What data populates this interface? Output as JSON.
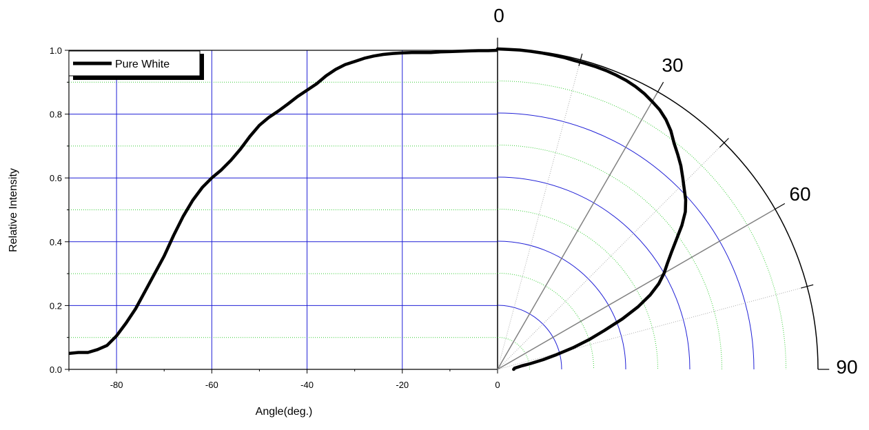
{
  "chart_data": [
    {
      "type": "line",
      "xlabel": "Angle(deg.)",
      "ylabel": "Relative Intensity",
      "xlim": [
        -90,
        0
      ],
      "ylim": [
        0,
        1.0
      ],
      "xticks": [
        -80,
        -60,
        -40,
        -20,
        0
      ],
      "yticks": [
        0.0,
        0.2,
        0.4,
        0.6,
        0.8,
        1.0
      ],
      "x_tick_labels": [
        "-80",
        "-60",
        "-40",
        "-20",
        "0"
      ],
      "y_tick_labels": [
        "0.0",
        "0.2",
        "0.4",
        "0.6",
        "0.8",
        "1.0"
      ],
      "grid": true,
      "legend_position": "top-left",
      "series": [
        {
          "name": "Pure White",
          "color": "#000000",
          "x": [
            -90,
            -88,
            -86,
            -84,
            -82,
            -80,
            -78,
            -76,
            -74,
            -72,
            -70,
            -68,
            -66,
            -64,
            -62,
            -60,
            -58,
            -56,
            -54,
            -52,
            -50,
            -48,
            -46,
            -44,
            -42,
            -40,
            -38,
            -36,
            -34,
            -32,
            -30,
            -28,
            -26,
            -24,
            -22,
            -20,
            -18,
            -16,
            -14,
            -12,
            -10,
            -8,
            -6,
            -4,
            -2,
            0
          ],
          "y": [
            0.05,
            0.053,
            0.053,
            0.062,
            0.075,
            0.105,
            0.145,
            0.19,
            0.245,
            0.3,
            0.355,
            0.42,
            0.48,
            0.53,
            0.57,
            0.6,
            0.625,
            0.655,
            0.69,
            0.73,
            0.765,
            0.79,
            0.81,
            0.832,
            0.855,
            0.875,
            0.895,
            0.92,
            0.94,
            0.955,
            0.965,
            0.975,
            0.982,
            0.987,
            0.99,
            0.992,
            0.993,
            0.993,
            0.993,
            0.995,
            0.996,
            0.997,
            0.998,
            0.999,
            0.999,
            1.0
          ]
        }
      ]
    },
    {
      "type": "polar",
      "angle_labels": [
        "0",
        "30",
        "60",
        "90"
      ],
      "theta_range": [
        0,
        90
      ],
      "r_range": [
        0,
        1.0
      ],
      "radial_rings": [
        0.1,
        0.2,
        0.3,
        0.4,
        0.5,
        0.6,
        0.7,
        0.8,
        0.9
      ],
      "grid": true,
      "series": [
        {
          "name": "Pure White",
          "color": "#000000",
          "theta": [
            0,
            2,
            4,
            6,
            8,
            10,
            12,
            14,
            16,
            18,
            20,
            22,
            24,
            26,
            28,
            30,
            32,
            34,
            36,
            38,
            40,
            42,
            44,
            46,
            48,
            50,
            52,
            54,
            56,
            58,
            60,
            62,
            64,
            66,
            68,
            70,
            72,
            74,
            76,
            78,
            80,
            82,
            84,
            86,
            88,
            90
          ],
          "r": [
            1.0,
            0.999,
            0.999,
            0.998,
            0.997,
            0.996,
            0.995,
            0.993,
            0.993,
            0.993,
            0.992,
            0.99,
            0.987,
            0.982,
            0.975,
            0.965,
            0.955,
            0.94,
            0.92,
            0.895,
            0.875,
            0.855,
            0.832,
            0.81,
            0.79,
            0.765,
            0.73,
            0.69,
            0.655,
            0.625,
            0.6,
            0.57,
            0.53,
            0.48,
            0.42,
            0.355,
            0.3,
            0.245,
            0.19,
            0.145,
            0.105,
            0.075,
            0.062,
            0.053,
            0.053,
            0.05
          ]
        }
      ]
    }
  ]
}
